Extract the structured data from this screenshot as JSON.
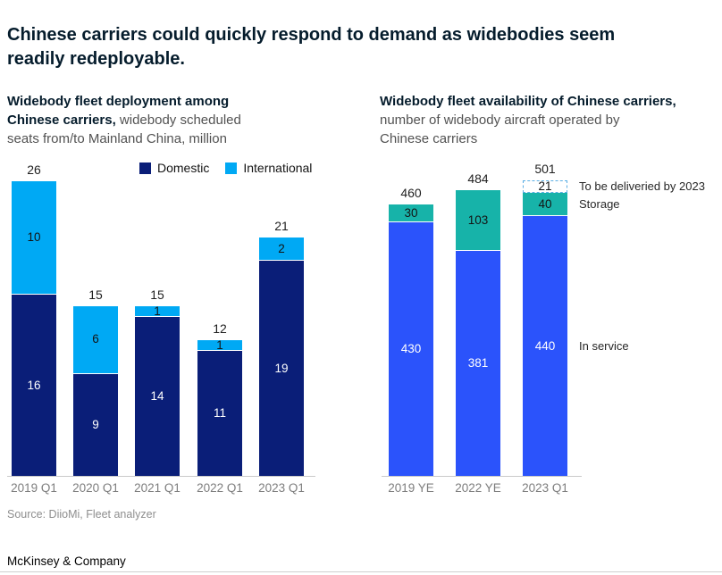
{
  "title_lines": [
    "Chinese carriers could quickly respond to demand as widebodies seem",
    "readily redeployable."
  ],
  "source": "Source: DiioMi, Fleet analyzer",
  "footer": "McKinsey & Company",
  "colors": {
    "domestic_navy": "#0a1e78",
    "international_blue": "#00a9f4",
    "in_service_blue": "#2b53fb",
    "storage_teal": "#17b3a9",
    "to_be_delivered_dash": "#5aaee4",
    "axis_line": "#c9c9c9",
    "tick_text": "#7d7d7d"
  },
  "chart_data": [
    {
      "type": "bar",
      "stacked": true,
      "header_lines": [
        {
          "bold": "Widebody fleet deployment among",
          "regular": ""
        },
        {
          "bold": "Chinese carriers,",
          "regular": " widebody scheduled"
        },
        {
          "bold": "",
          "regular": "seats from/to Mainland China, million"
        }
      ],
      "categories": [
        "2019 Q1",
        "2020 Q1",
        "2021 Q1",
        "2022 Q1",
        "2023 Q1"
      ],
      "series": [
        {
          "name": "Domestic",
          "color": "#0a1e78",
          "label_color": "#ffffff",
          "values": [
            16,
            9,
            14,
            11,
            19
          ]
        },
        {
          "name": "International",
          "color": "#00a9f4",
          "label_color": "#141414",
          "values": [
            10,
            6,
            1,
            1,
            2
          ]
        }
      ],
      "totals": [
        26,
        15,
        15,
        12,
        21
      ],
      "legend_position": "top-right-of-plot",
      "ylim": [
        0,
        26
      ],
      "grid": false
    },
    {
      "type": "bar",
      "stacked": true,
      "header_lines": [
        {
          "bold": "Widebody fleet availability of Chinese carriers,",
          "regular": ""
        },
        {
          "bold": "",
          "regular": "number of widebody aircraft operated by"
        },
        {
          "bold": "",
          "regular": "Chinese carriers"
        }
      ],
      "categories": [
        "2019 YE",
        "2022 YE",
        "2023 Q1"
      ],
      "series": [
        {
          "name": "In service",
          "color": "#2b53fb",
          "label_color": "#ffffff",
          "values": [
            430,
            381,
            440
          ]
        },
        {
          "name": "Storage",
          "color": "#17b3a9",
          "label_color": "#141414",
          "values": [
            30,
            103,
            40
          ]
        },
        {
          "name": "To be deliveried by 2023",
          "style": "dashed",
          "border_color": "#5aaee4",
          "label_color": "#141414",
          "values": [
            0,
            0,
            21
          ]
        }
      ],
      "totals": [
        460,
        484,
        501
      ],
      "annotations": [
        {
          "label": "To be deliveried by 2023",
          "series_index": 2
        },
        {
          "label": "Storage",
          "series_index": 1
        },
        {
          "label": "In service",
          "series_index": 0
        }
      ],
      "ylim": [
        0,
        510
      ],
      "grid": false
    }
  ]
}
